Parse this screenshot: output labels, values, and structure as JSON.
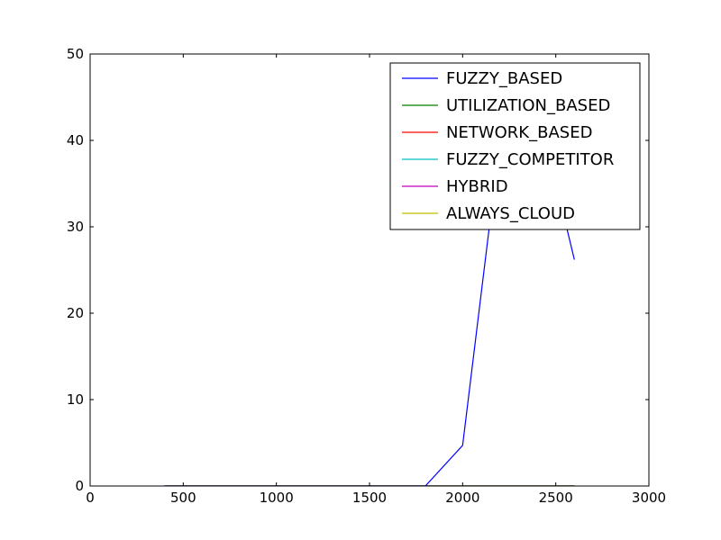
{
  "chart_data": {
    "type": "line",
    "title": "",
    "xlabel": "",
    "ylabel": "",
    "xlim": [
      0,
      3000
    ],
    "ylim": [
      0,
      50
    ],
    "xticks": [
      0,
      500,
      1000,
      1500,
      2000,
      2500,
      3000
    ],
    "yticks": [
      0,
      10,
      20,
      30,
      40,
      50
    ],
    "grid": false,
    "legend_position": "top-right",
    "series": [
      {
        "name": "FUZZY_BASED",
        "color": "#0000ff",
        "x": [
          400,
          600,
          800,
          1000,
          1200,
          1400,
          1600,
          1800,
          2000,
          2200,
          2400,
          2600
        ],
        "y": [
          0,
          0,
          0,
          0,
          0,
          0,
          0,
          0,
          4.7,
          40,
          44,
          26.2
        ]
      },
      {
        "name": "UTILIZATION_BASED",
        "color": "#008000",
        "x": [
          400,
          600,
          800,
          1000,
          1200,
          1400,
          1600,
          1800,
          2000,
          2200,
          2400,
          2600
        ],
        "y": [
          0,
          0,
          0,
          0,
          0,
          0,
          0,
          0,
          0,
          0,
          0,
          0
        ]
      },
      {
        "name": "NETWORK_BASED",
        "color": "#ff0000",
        "x": [
          400,
          600,
          800,
          1000,
          1200,
          1400,
          1600,
          1800,
          2000,
          2200,
          2400,
          2600
        ],
        "y": [
          0,
          0,
          0,
          0,
          0,
          0,
          0,
          0,
          0,
          0,
          0,
          0
        ]
      },
      {
        "name": "FUZZY_COMPETITOR",
        "color": "#00bfbf",
        "x": [
          400,
          600,
          800,
          1000,
          1200,
          1400,
          1600,
          1800,
          2000,
          2200,
          2400,
          2600
        ],
        "y": [
          0,
          0,
          0,
          0,
          0,
          0,
          0,
          0,
          0,
          0,
          0,
          0
        ]
      },
      {
        "name": "HYBRID",
        "color": "#bf00bf",
        "x": [
          400,
          600,
          800,
          1000,
          1200,
          1400,
          1600,
          1800,
          2000,
          2200,
          2400,
          2600
        ],
        "y": [
          0,
          0,
          0,
          0,
          0,
          0,
          0,
          0,
          0,
          0,
          0,
          0
        ]
      },
      {
        "name": "ALWAYS_CLOUD",
        "color": "#bfbf00",
        "x": [
          400,
          600,
          800,
          1000,
          1200,
          1400,
          1600,
          1800,
          2000,
          2200,
          2400,
          2600
        ],
        "y": [
          0,
          0,
          0,
          0,
          0,
          0,
          0,
          0,
          0,
          0,
          0,
          0
        ]
      }
    ]
  }
}
